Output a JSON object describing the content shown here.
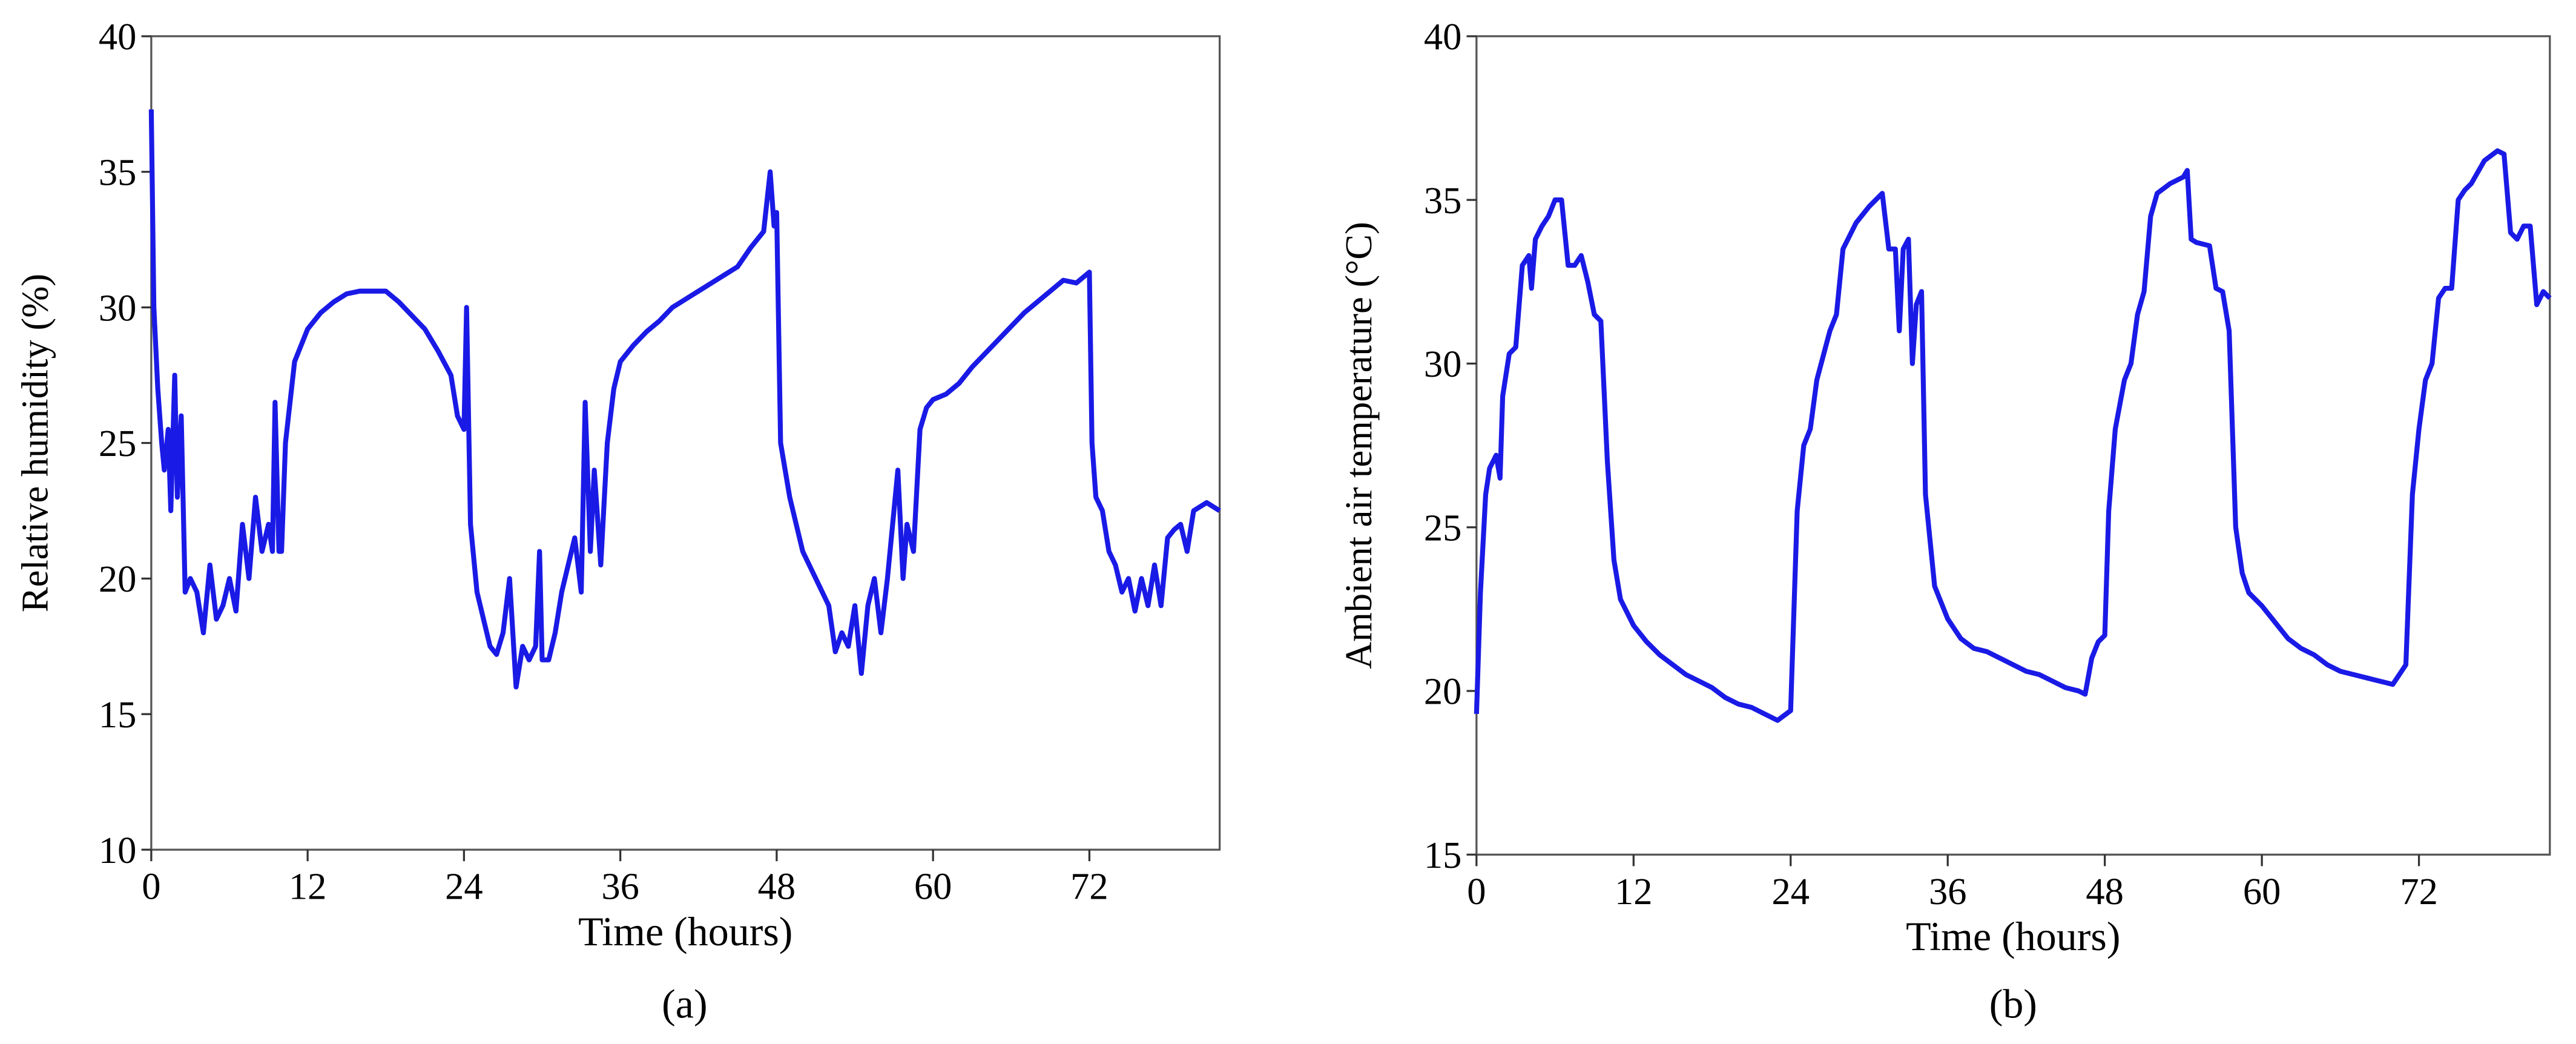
{
  "chart_data": [
    {
      "type": "line",
      "xlabel": "Time (hours)",
      "ylabel": "Relative humidity (%)",
      "label": "(a)",
      "color": "#1a1ae6",
      "xlim": [
        0,
        82
      ],
      "xticks": [
        0,
        12,
        24,
        36,
        48,
        60,
        72
      ],
      "ylim": [
        10,
        40
      ],
      "yticks": [
        10,
        15,
        20,
        25,
        30,
        35,
        40
      ],
      "x": [
        0,
        0.2,
        0.5,
        0.8,
        1,
        1.3,
        1.5,
        1.8,
        2,
        2.3,
        2.6,
        3,
        3.5,
        4,
        4.5,
        5,
        5.5,
        6,
        6.5,
        7,
        7.5,
        8,
        8.5,
        9,
        9.3,
        9.5,
        9.8,
        10,
        10.3,
        11,
        12,
        13,
        14,
        15,
        16,
        17,
        18,
        19,
        20,
        21,
        22,
        23,
        23.5,
        24,
        24.2,
        24.5,
        25,
        25.5,
        26,
        26.5,
        27,
        27.5,
        28,
        28.5,
        29,
        29.5,
        29.8,
        30,
        30.5,
        31,
        31.5,
        32,
        32.5,
        33,
        33.3,
        33.7,
        34,
        34.5,
        35,
        35.5,
        36,
        37,
        38,
        39,
        40,
        41,
        42,
        43,
        44,
        45,
        46,
        47,
        47.5,
        47.8,
        48,
        48.3,
        49,
        49.5,
        50,
        51,
        52,
        52.5,
        53,
        53.5,
        54,
        54.5,
        55,
        55.5,
        56,
        56.5,
        57,
        57.3,
        57.7,
        58,
        58.5,
        59,
        59.5,
        60,
        61,
        62,
        63,
        64,
        65,
        66,
        67,
        68,
        69,
        70,
        71,
        72,
        72.2,
        72.5,
        73,
        73.5,
        74,
        74.5,
        75,
        75.5,
        76,
        76.5,
        77,
        77.5,
        78,
        78.5,
        79,
        79.5,
        80,
        81,
        82
      ],
      "values": [
        37.3,
        30,
        27,
        25,
        24,
        25.5,
        22.5,
        27.5,
        23,
        26,
        19.5,
        20,
        19.5,
        18,
        20.5,
        18.5,
        19,
        20,
        18.8,
        22,
        20,
        23,
        21,
        22,
        21,
        26.5,
        21,
        21,
        25,
        28,
        29.2,
        29.8,
        30.2,
        30.5,
        30.6,
        30.6,
        30.6,
        30.2,
        29.7,
        29.2,
        28.4,
        27.5,
        26,
        25.5,
        30,
        22,
        19.5,
        18.5,
        17.5,
        17.2,
        18,
        20,
        16,
        17.5,
        17,
        17.5,
        21,
        17,
        17,
        18,
        19.5,
        20.5,
        21.5,
        19.5,
        26.5,
        21,
        24,
        20.5,
        25,
        27,
        28,
        28.6,
        29.1,
        29.5,
        30,
        30.3,
        30.6,
        30.9,
        31.2,
        31.5,
        32.2,
        32.8,
        35,
        33,
        33.5,
        25,
        23,
        22,
        21,
        20,
        19,
        17.3,
        18,
        17.5,
        19,
        16.5,
        19,
        20,
        18,
        20,
        22.5,
        24,
        20,
        22,
        21,
        25.5,
        26.3,
        26.6,
        26.8,
        27.2,
        27.8,
        28.3,
        28.8,
        29.3,
        29.8,
        30.2,
        30.6,
        31,
        30.9,
        31.3,
        25,
        23,
        22.5,
        21,
        20.5,
        19.5,
        20,
        18.8,
        20,
        19,
        20.5,
        19,
        21.5,
        21.8,
        22,
        21,
        22.5,
        22.8,
        22.5
      ]
    },
    {
      "type": "line",
      "xlabel": "Time (hours)",
      "ylabel": "Ambient air temperature (°C)",
      "label": "(b)",
      "color": "#1a1ae6",
      "xlim": [
        0,
        82
      ],
      "xticks": [
        0,
        12,
        24,
        36,
        48,
        60,
        72
      ],
      "ylim": [
        15,
        40
      ],
      "yticks": [
        15,
        20,
        25,
        30,
        35,
        40
      ],
      "x": [
        0,
        0.3,
        0.7,
        1,
        1.5,
        1.8,
        2,
        2.5,
        3,
        3.5,
        4,
        4.2,
        4.5,
        5,
        5.5,
        6,
        6.5,
        7,
        7.5,
        8,
        8.5,
        9,
        9.5,
        10,
        10.5,
        11,
        12,
        13,
        14,
        15,
        16,
        17,
        18,
        19,
        20,
        21,
        22,
        23,
        24,
        24.5,
        25,
        25.5,
        26,
        27,
        27.5,
        28,
        29,
        30,
        31,
        31.5,
        32,
        32.3,
        32.6,
        33,
        33.3,
        33.6,
        34,
        34.3,
        35,
        36,
        37,
        38,
        39,
        40,
        41,
        42,
        43,
        44,
        45,
        46,
        46.5,
        47,
        47.5,
        48,
        48.3,
        48.8,
        49.5,
        50,
        50.5,
        51,
        51.5,
        52,
        53,
        54,
        54.3,
        54.6,
        55,
        56,
        56.5,
        57,
        57.5,
        58,
        58.5,
        59,
        60,
        61,
        62,
        63,
        64,
        65,
        66,
        67,
        68,
        69,
        70,
        70.5,
        71,
        71.5,
        72,
        72.5,
        73,
        73.5,
        74,
        74.5,
        75,
        75.5,
        76,
        77,
        78,
        78.5,
        79,
        79.5,
        80,
        80.5,
        81,
        81.5,
        82
      ],
      "values": [
        19.3,
        23,
        26,
        26.8,
        27.2,
        26.5,
        29,
        30.3,
        30.5,
        33,
        33.3,
        32.3,
        33.8,
        34.2,
        34.5,
        35,
        35,
        33,
        33,
        33.3,
        32.5,
        31.5,
        31.3,
        27,
        24,
        22.8,
        22,
        21.5,
        21.1,
        20.8,
        20.5,
        20.3,
        20.1,
        19.8,
        19.6,
        19.5,
        19.3,
        19.1,
        19.4,
        25.5,
        27.5,
        28,
        29.5,
        31,
        31.5,
        33.5,
        34.3,
        34.8,
        35.2,
        33.5,
        33.5,
        31,
        33.5,
        33.8,
        30,
        31.8,
        32.2,
        26,
        23.2,
        22.2,
        21.6,
        21.3,
        21.2,
        21,
        20.8,
        20.6,
        20.5,
        20.3,
        20.1,
        20,
        19.9,
        21,
        21.5,
        21.7,
        25.5,
        28,
        29.5,
        30,
        31.5,
        32.2,
        34.5,
        35.2,
        35.5,
        35.7,
        35.9,
        33.8,
        33.7,
        33.6,
        32.3,
        32.2,
        31,
        25,
        23.6,
        23,
        22.6,
        22.1,
        21.6,
        21.3,
        21.1,
        20.8,
        20.6,
        20.5,
        20.4,
        20.3,
        20.2,
        20.5,
        20.8,
        26,
        28,
        29.5,
        30,
        32,
        32.3,
        32.3,
        35,
        35.3,
        35.5,
        36.2,
        36.5,
        36.4,
        34,
        33.8,
        34.2,
        34.2,
        31.8,
        32.2,
        32
      ]
    }
  ]
}
